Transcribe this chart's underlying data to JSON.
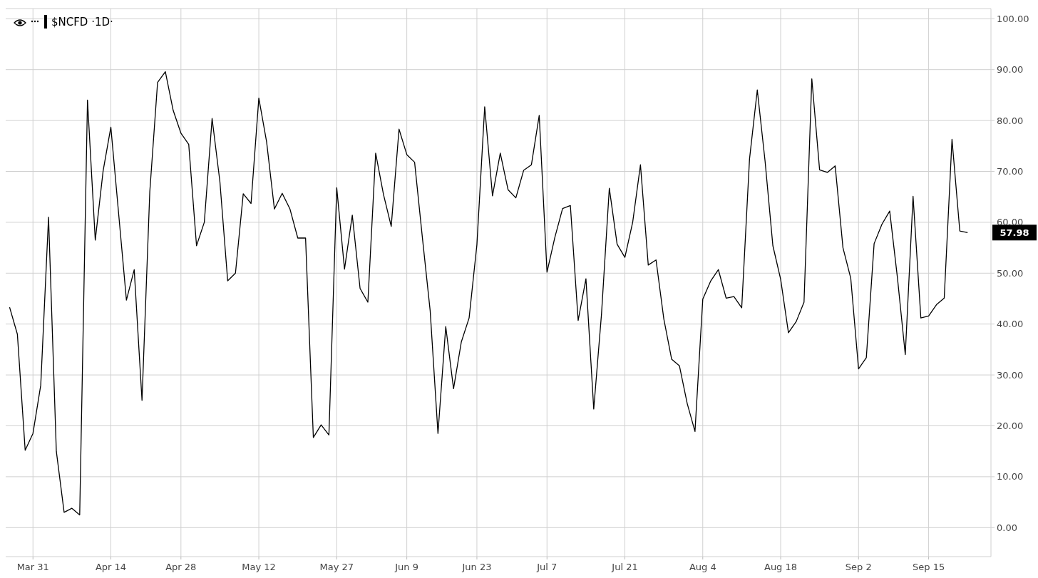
{
  "chart_data": {
    "type": "line",
    "title": "$NCFD ·1D·",
    "categories": [
      null,
      null,
      null,
      "Mar 31",
      null,
      null,
      null,
      null,
      null,
      null,
      null,
      null,
      null,
      "Apr 14",
      null,
      null,
      null,
      null,
      null,
      null,
      null,
      null,
      "Apr 28",
      null,
      null,
      null,
      null,
      null,
      null,
      null,
      null,
      null,
      "May 12",
      null,
      null,
      null,
      null,
      null,
      null,
      null,
      null,
      null,
      "May 27",
      null,
      null,
      null,
      null,
      null,
      null,
      null,
      null,
      "Jun 9",
      null,
      null,
      null,
      null,
      null,
      null,
      null,
      null,
      "Jun 23",
      null,
      null,
      null,
      null,
      null,
      null,
      null,
      null,
      "Jul 7",
      null,
      null,
      null,
      null,
      null,
      null,
      null,
      null,
      null,
      "Jul 21",
      null,
      null,
      null,
      null,
      null,
      null,
      null,
      null,
      null,
      "Aug 4",
      null,
      null,
      null,
      null,
      null,
      null,
      null,
      null,
      null,
      "Aug 18",
      null,
      null,
      null,
      null,
      null,
      null,
      null,
      null,
      null,
      "Sep 2",
      null,
      null,
      null,
      null,
      null,
      null,
      null,
      null,
      "Sep 15",
      null,
      null,
      null,
      null,
      null
    ],
    "series": [
      {
        "color": "#000000",
        "values": [
          43.3,
          38,
          15.2,
          18.5,
          28,
          61,
          15,
          3,
          3.8,
          2.5,
          84,
          56.5,
          70,
          78.7,
          61.7,
          44.7,
          50.7,
          25,
          66,
          87.5,
          89.6,
          82,
          77.5,
          75.3,
          55.4,
          60,
          80.4,
          68,
          48.5,
          50,
          65.6,
          63.7,
          84.4,
          75.8,
          62.6,
          65.7,
          62.6,
          56.9,
          56.9,
          17.7,
          20.2,
          18.2,
          66.8,
          50.8,
          61.4,
          47,
          44.3,
          73.6,
          65.5,
          59.2,
          78.3,
          73.3,
          71.8,
          57,
          42.6,
          18.5,
          39.5,
          27.3,
          36.5,
          41.2,
          55.6,
          82.7,
          65.2,
          73.6,
          66.4,
          64.8,
          70.2,
          71.3,
          81,
          50.2,
          57,
          62.7,
          63.3,
          40.7,
          48.9,
          23.3,
          42,
          66.7,
          55.7,
          53.1,
          60,
          71.3,
          51.6,
          52.6,
          41,
          33.1,
          31.8,
          24.4,
          18.9,
          44.9,
          48.4,
          50.7,
          45.1,
          45.4,
          43.2,
          72.4,
          86,
          72,
          55.4,
          48.8,
          38.3,
          40.5,
          44.3,
          88.2,
          70.3,
          69.8,
          71.1,
          55,
          49,
          31.2,
          33.4,
          55.8,
          59.6,
          62.2,
          49,
          34,
          65.1,
          41.2,
          41.6,
          43.8,
          45.1,
          76.3,
          58.3,
          57.98
        ]
      }
    ],
    "ylim": [
      -5.7,
      102
    ],
    "yticks": [
      {
        "value": 0,
        "label": "0.00"
      },
      {
        "value": 10,
        "label": "10.00"
      },
      {
        "value": 20,
        "label": "20.00"
      },
      {
        "value": 30,
        "label": "30.00"
      },
      {
        "value": 40,
        "label": "40.00"
      },
      {
        "value": 50,
        "label": "50.00"
      },
      {
        "value": 60,
        "label": "60.00"
      },
      {
        "value": 70,
        "label": "70.00"
      },
      {
        "value": 80,
        "label": "80.00"
      },
      {
        "value": 90,
        "label": "90.00"
      },
      {
        "value": 100,
        "label": "100.00"
      }
    ],
    "grid": true,
    "line_style": "solid",
    "annotations": [
      "57.98"
    ]
  }
}
